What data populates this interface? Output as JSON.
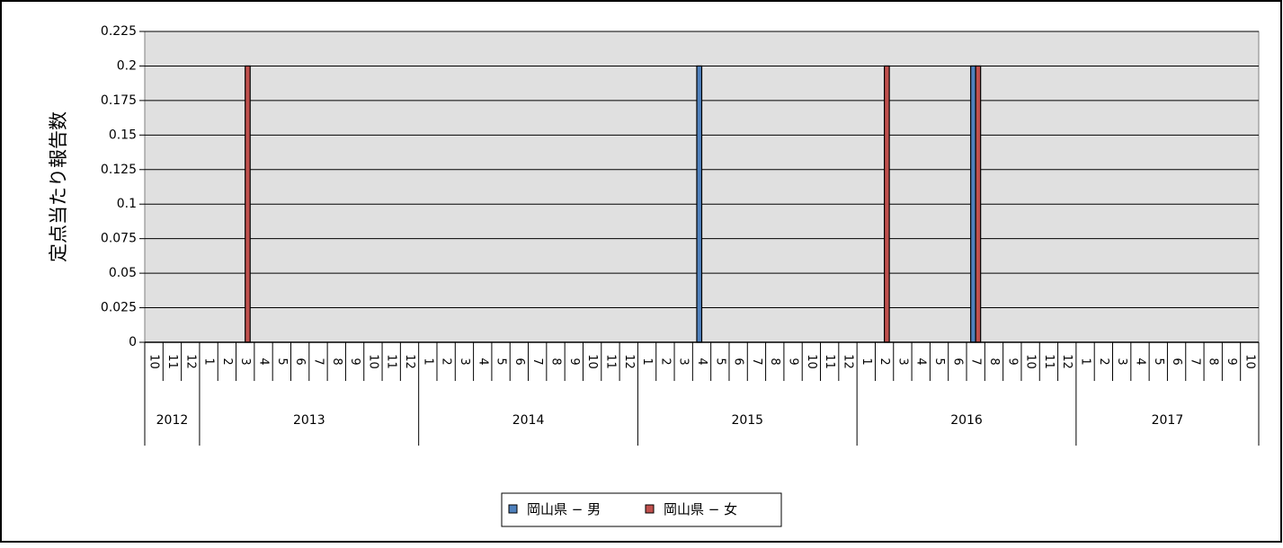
{
  "chart_data": {
    "type": "bar",
    "ylabel": "定点当たり報告数",
    "xlabel": "",
    "title": "",
    "ylim": [
      0,
      0.225
    ],
    "yticks": [
      "0",
      "0.025",
      "0.05",
      "0.075",
      "0.1",
      "0.125",
      "0.15",
      "0.175",
      "0.2",
      "0.225"
    ],
    "grid": true,
    "legend_position": "bottom",
    "years": [
      {
        "label": "2012",
        "months": [
          "10",
          "11",
          "12"
        ]
      },
      {
        "label": "2013",
        "months": [
          "1",
          "2",
          "3",
          "4",
          "5",
          "6",
          "7",
          "8",
          "9",
          "10",
          "11",
          "12"
        ]
      },
      {
        "label": "2014",
        "months": [
          "1",
          "2",
          "3",
          "4",
          "5",
          "6",
          "7",
          "8",
          "9",
          "10",
          "11",
          "12"
        ]
      },
      {
        "label": "2015",
        "months": [
          "1",
          "2",
          "3",
          "4",
          "5",
          "6",
          "7",
          "8",
          "9",
          "10",
          "11",
          "12"
        ]
      },
      {
        "label": "2016",
        "months": [
          "1",
          "2",
          "3",
          "4",
          "5",
          "6",
          "7",
          "8",
          "9",
          "10",
          "11",
          "12"
        ]
      },
      {
        "label": "2017",
        "months": [
          "1",
          "2",
          "3",
          "4",
          "5",
          "6",
          "7",
          "8",
          "9",
          "10"
        ]
      }
    ],
    "series": [
      {
        "name": "岡山県 − 男",
        "color": "#4f81bd",
        "values": [
          0,
          0,
          0,
          0,
          0,
          0,
          0,
          0,
          0,
          0,
          0,
          0,
          0,
          0,
          0,
          0,
          0,
          0,
          0,
          0,
          0,
          0,
          0,
          0,
          0,
          0,
          0,
          0,
          0,
          0,
          0.2,
          0,
          0,
          0,
          0,
          0,
          0,
          0,
          0,
          0,
          0,
          0,
          0,
          0,
          0,
          0.2,
          0,
          0,
          0,
          0,
          0,
          0,
          0,
          0,
          0,
          0,
          0,
          0,
          0,
          0,
          0
        ]
      },
      {
        "name": "岡山県 − 女",
        "color": "#c0504d",
        "values": [
          0,
          0,
          0,
          0,
          0,
          0.2,
          0,
          0,
          0,
          0,
          0,
          0,
          0,
          0,
          0,
          0,
          0,
          0,
          0,
          0,
          0,
          0,
          0,
          0,
          0,
          0,
          0,
          0,
          0,
          0,
          0,
          0,
          0,
          0,
          0,
          0,
          0,
          0,
          0,
          0,
          0.2,
          0,
          0,
          0,
          0,
          0.2,
          0,
          0,
          0,
          0,
          0,
          0,
          0,
          0,
          0,
          0,
          0,
          0,
          0,
          0,
          0
        ]
      }
    ]
  }
}
